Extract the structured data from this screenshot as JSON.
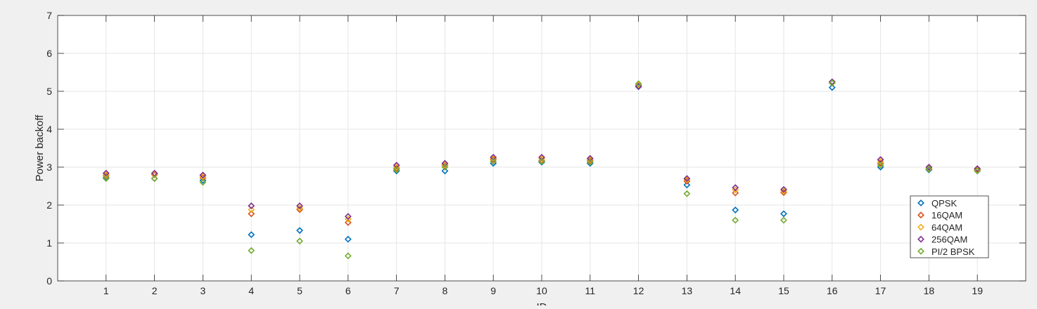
{
  "chart_data": {
    "type": "scatter",
    "title": "",
    "xlabel": "ID",
    "ylabel": "Power backoff",
    "xlim": [
      0,
      20
    ],
    "ylim": [
      0,
      7
    ],
    "xticks": [
      1,
      2,
      3,
      4,
      5,
      6,
      7,
      8,
      9,
      10,
      11,
      12,
      13,
      14,
      15,
      16,
      17,
      18,
      19
    ],
    "yticks": [
      0,
      1,
      2,
      3,
      4,
      5,
      6,
      7
    ],
    "grid": true,
    "legend_position": "bottom-right",
    "series": [
      {
        "name": "QPSK",
        "color": "#0072bd",
        "x": [
          1,
          2,
          3,
          4,
          5,
          6,
          7,
          8,
          9,
          10,
          11,
          12,
          13,
          14,
          15,
          16,
          17,
          18,
          19
        ],
        "y": [
          2.72,
          2.7,
          2.65,
          1.22,
          1.33,
          1.1,
          2.9,
          2.9,
          3.1,
          3.13,
          3.1,
          5.12,
          2.53,
          1.87,
          1.77,
          5.1,
          3.0,
          2.93,
          2.9
        ]
      },
      {
        "name": "16QAM",
        "color": "#d95319",
        "x": [
          1,
          2,
          3,
          4,
          5,
          6,
          7,
          8,
          9,
          10,
          11,
          12,
          13,
          14,
          15,
          16,
          17,
          18,
          19
        ],
        "y": [
          2.77,
          2.8,
          2.72,
          1.77,
          1.88,
          1.54,
          2.97,
          3.05,
          3.2,
          3.17,
          3.17,
          5.15,
          2.63,
          2.32,
          2.33,
          5.22,
          3.1,
          2.95,
          2.93
        ]
      },
      {
        "name": "64QAM",
        "color": "#edb120",
        "x": [
          1,
          2,
          3,
          4,
          5,
          6,
          7,
          8,
          9,
          10,
          11,
          12,
          13,
          14,
          15,
          16,
          17,
          18,
          19
        ],
        "y": [
          2.8,
          2.82,
          2.75,
          1.88,
          1.92,
          1.63,
          3.0,
          3.07,
          3.23,
          3.22,
          3.2,
          5.17,
          2.67,
          2.4,
          2.37,
          5.24,
          3.15,
          2.97,
          2.95
        ]
      },
      {
        "name": "256QAM",
        "color": "#7e2f8e",
        "x": [
          1,
          2,
          3,
          4,
          5,
          6,
          7,
          8,
          9,
          10,
          11,
          12,
          13,
          14,
          15,
          16,
          17,
          18,
          19
        ],
        "y": [
          2.84,
          2.84,
          2.79,
          1.98,
          1.98,
          1.7,
          3.05,
          3.1,
          3.26,
          3.26,
          3.23,
          5.13,
          2.7,
          2.46,
          2.41,
          5.25,
          3.2,
          3.0,
          2.96
        ]
      },
      {
        "name": "PI/2 BPSK",
        "color": "#77ac30",
        "x": [
          1,
          2,
          3,
          4,
          5,
          6,
          7,
          8,
          9,
          10,
          11,
          12,
          13,
          14,
          15,
          16,
          17,
          18,
          19
        ],
        "y": [
          2.7,
          2.7,
          2.6,
          0.8,
          1.05,
          0.66,
          2.93,
          3.0,
          3.15,
          3.15,
          3.13,
          5.2,
          2.3,
          1.6,
          1.6,
          5.22,
          3.05,
          2.95,
          2.9
        ]
      }
    ]
  }
}
